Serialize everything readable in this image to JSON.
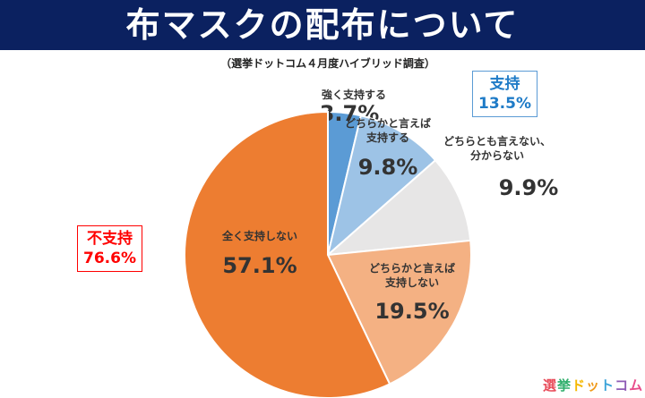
{
  "chart_data": {
    "type": "pie",
    "title": "布マスクの配布について",
    "subtitle": "（選挙ドットコム４月度ハイブリッド調査）",
    "slices": [
      {
        "label": "強く支持する",
        "value": 3.7,
        "display": "3.7%",
        "color": "#5B9BD5"
      },
      {
        "label": "どちらかと言えば\n支持する",
        "value": 9.8,
        "display": "9.8%",
        "color": "#9DC3E6"
      },
      {
        "label": "どちらとも言えない、\n分からない",
        "value": 9.9,
        "display": "9.9%",
        "color": "#E7E6E6"
      },
      {
        "label": "どちらかと言えば\n支持しない",
        "value": 19.5,
        "display": "19.5%",
        "color": "#F4B183"
      },
      {
        "label": "全く支持しない",
        "value": 57.1,
        "display": "57.1%",
        "color": "#ED7D31"
      }
    ],
    "groups": [
      {
        "label": "支持",
        "value": "13.5%",
        "color": "#1F7BC7"
      },
      {
        "label": "不支持",
        "value": "76.6%",
        "color": "#FF0000"
      }
    ]
  },
  "logo": {
    "text": "選挙ドットコム"
  }
}
